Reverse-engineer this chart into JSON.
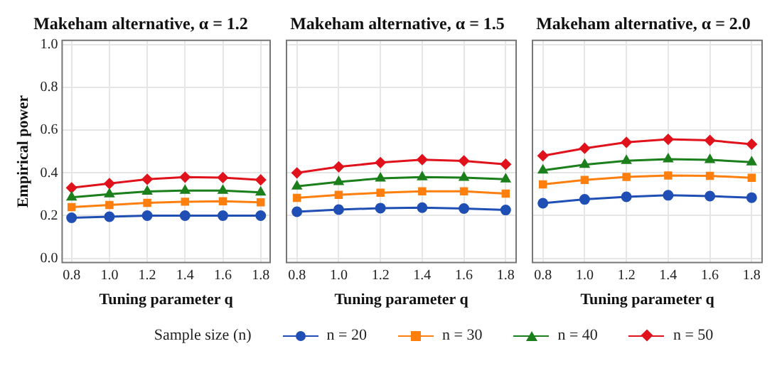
{
  "chart_data": [
    {
      "type": "line",
      "title": "Makeham alternative, α = 1.2",
      "xlabel": "Tuning parameter q",
      "ylabel": "Empirical power",
      "x": [
        0.8,
        1.0,
        1.2,
        1.4,
        1.6,
        1.8
      ],
      "xlim": [
        0.75,
        1.85
      ],
      "ylim": [
        -0.02,
        1.02
      ],
      "xticks": [
        {
          "value": 0.8,
          "label": "0.8"
        },
        {
          "value": 1.0,
          "label": "1.0"
        },
        {
          "value": 1.2,
          "label": "1.2"
        },
        {
          "value": 1.4,
          "label": "1.4"
        },
        {
          "value": 1.6,
          "label": "1.6"
        },
        {
          "value": 1.8,
          "label": "1.8"
        }
      ],
      "yticks": [
        {
          "value": 0,
          "label": "0.0"
        },
        {
          "value": 0.2,
          "label": "0.2"
        },
        {
          "value": 0.4,
          "label": "0.4"
        },
        {
          "value": 0.6,
          "label": "0.6"
        },
        {
          "value": 0.8,
          "label": "0.8"
        },
        {
          "value": 1,
          "label": "1.0"
        }
      ],
      "grid": true,
      "legend": "bottom",
      "legend_title": "Sample size (n)",
      "series": [
        {
          "name": "n = 20",
          "color": "#1f4fb4",
          "marker": "circle",
          "values": [
            0.19,
            0.195,
            0.2,
            0.2,
            0.2,
            0.2
          ]
        },
        {
          "name": "n = 30",
          "color": "#ff7f0e",
          "marker": "square",
          "values": [
            0.24,
            0.25,
            0.26,
            0.265,
            0.267,
            0.262
          ]
        },
        {
          "name": "n = 40",
          "color": "#1b7f1b",
          "marker": "triangle",
          "values": [
            0.285,
            0.3,
            0.313,
            0.317,
            0.317,
            0.309
          ]
        },
        {
          "name": "n = 50",
          "color": "#e0121c",
          "marker": "diamond",
          "values": [
            0.33,
            0.35,
            0.37,
            0.38,
            0.378,
            0.367
          ]
        }
      ]
    },
    {
      "type": "line",
      "title": "Makeham alternative, α = 1.5",
      "xlabel": "Tuning parameter q",
      "x": [
        0.8,
        1.0,
        1.2,
        1.4,
        1.6,
        1.8
      ],
      "xlim": [
        0.75,
        1.85
      ],
      "ylim": [
        -0.02,
        1.02
      ],
      "xticks": [
        {
          "value": 0.8,
          "label": "0.8"
        },
        {
          "value": 1.0,
          "label": "1.0"
        },
        {
          "value": 1.2,
          "label": "1.2"
        },
        {
          "value": 1.4,
          "label": "1.4"
        },
        {
          "value": 1.6,
          "label": "1.6"
        },
        {
          "value": 1.8,
          "label": "1.8"
        }
      ],
      "yticks": [
        {
          "value": 0,
          "label": null
        },
        {
          "value": 0.2,
          "label": null
        },
        {
          "value": 0.4,
          "label": null
        },
        {
          "value": 0.6,
          "label": null
        },
        {
          "value": 0.8,
          "label": null
        },
        {
          "value": 1,
          "label": null
        }
      ],
      "tick_labels": "x",
      "grid": true,
      "series": [
        {
          "color": "#1f4fb4",
          "marker": "circle",
          "values": [
            0.218,
            0.228,
            0.235,
            0.237,
            0.233,
            0.226
          ]
        },
        {
          "color": "#ff7f0e",
          "marker": "square",
          "values": [
            0.283,
            0.297,
            0.307,
            0.314,
            0.314,
            0.303
          ]
        },
        {
          "color": "#1b7f1b",
          "marker": "triangle",
          "values": [
            0.337,
            0.358,
            0.374,
            0.38,
            0.378,
            0.37
          ]
        },
        {
          "color": "#e0121c",
          "marker": "diamond",
          "values": [
            0.4,
            0.428,
            0.448,
            0.462,
            0.456,
            0.44
          ]
        }
      ]
    },
    {
      "type": "line",
      "title": "Makeham alternative, α = 2.0",
      "xlabel": "Tuning parameter q",
      "x": [
        0.8,
        1.0,
        1.2,
        1.4,
        1.6,
        1.8
      ],
      "xlim": [
        0.75,
        1.85
      ],
      "ylim": [
        -0.02,
        1.02
      ],
      "xticks": [
        {
          "value": 0.8,
          "label": "0.8"
        },
        {
          "value": 1.0,
          "label": "1.0"
        },
        {
          "value": 1.2,
          "label": "1.2"
        },
        {
          "value": 1.4,
          "label": "1.4"
        },
        {
          "value": 1.6,
          "label": "1.6"
        },
        {
          "value": 1.8,
          "label": "1.8"
        }
      ],
      "yticks": [
        {
          "value": 0,
          "label": null
        },
        {
          "value": 0.2,
          "label": null
        },
        {
          "value": 0.4,
          "label": null
        },
        {
          "value": 0.6,
          "label": null
        },
        {
          "value": 0.8,
          "label": null
        },
        {
          "value": 1,
          "label": null
        }
      ],
      "tick_labels": "x",
      "grid": true,
      "series": [
        {
          "color": "#1f4fb4",
          "marker": "circle",
          "values": [
            0.258,
            0.276,
            0.288,
            0.295,
            0.291,
            0.284
          ]
        },
        {
          "color": "#ff7f0e",
          "marker": "square",
          "values": [
            0.346,
            0.367,
            0.381,
            0.388,
            0.386,
            0.377
          ]
        },
        {
          "color": "#1b7f1b",
          "marker": "triangle",
          "values": [
            0.412,
            0.438,
            0.457,
            0.464,
            0.461,
            0.45
          ]
        },
        {
          "color": "#e0121c",
          "marker": "diamond",
          "values": [
            0.48,
            0.515,
            0.543,
            0.557,
            0.552,
            0.534
          ]
        }
      ]
    }
  ]
}
